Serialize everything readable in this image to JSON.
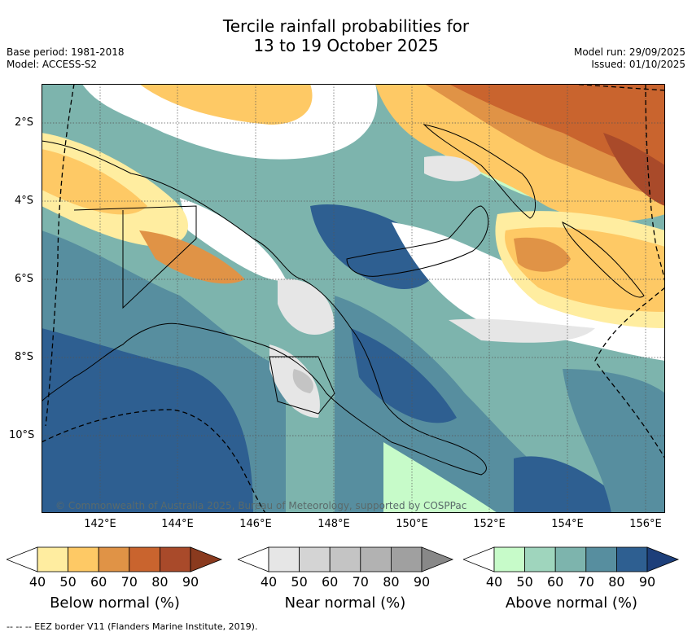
{
  "title_line1": "Tercile rainfall probabilities for",
  "title_line2": "13 to 19 October 2025",
  "meta_left": [
    "Base period: 1981-2018",
    "Model: ACCESS-S2"
  ],
  "meta_right": [
    "Model run: 29/09/2025",
    "Issued: 01/10/2025"
  ],
  "lat_ticks": [
    "2°S",
    "4°S",
    "6°S",
    "8°S",
    "10°S"
  ],
  "lon_ticks": [
    "142°E",
    "144°E",
    "146°E",
    "148°E",
    "150°E",
    "152°E",
    "154°E",
    "156°E"
  ],
  "copyright": "© Commonwealth of Australia 2025, Bureau of Meteorology, supported by COSPPac",
  "colorbars": [
    {
      "label": "Below normal (%)",
      "ticks": [
        "40",
        "50",
        "60",
        "70",
        "80",
        "90"
      ],
      "colors": [
        "#ffffff",
        "#ffeda0",
        "#fec965",
        "#e09346",
        "#c9642e",
        "#a94a2a",
        "#8a3a1e"
      ]
    },
    {
      "label": "Near normal (%)",
      "ticks": [
        "40",
        "50",
        "60",
        "70",
        "80",
        "90"
      ],
      "colors": [
        "#ffffff",
        "#e6e6e6",
        "#d4d4d4",
        "#c4c4c4",
        "#b2b2b2",
        "#a0a0a0",
        "#888888"
      ]
    },
    {
      "label": "Above normal (%)",
      "ticks": [
        "40",
        "50",
        "60",
        "70",
        "80",
        "90"
      ],
      "colors": [
        "#ffffff",
        "#c7fbc9",
        "#9fd5bd",
        "#7db4ad",
        "#578e9f",
        "#2e5f91",
        "#1d3f7a"
      ]
    }
  ],
  "footer": "--  --  -- EEZ border V11 (Flanders Marine Institute, 2019)."
}
